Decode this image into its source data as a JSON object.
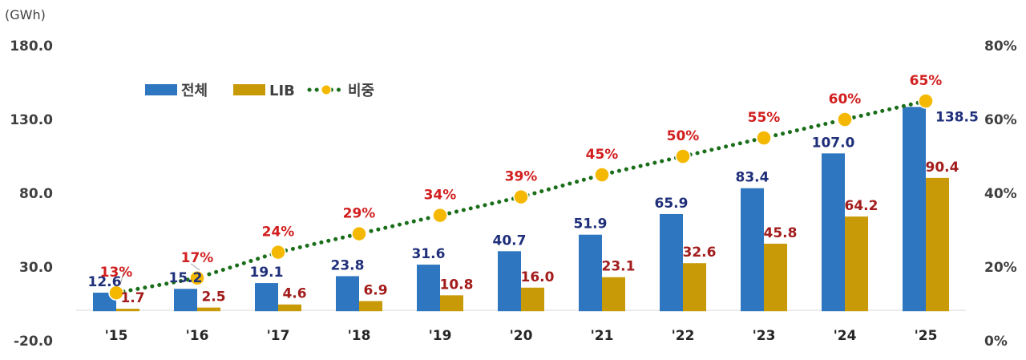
{
  "chart_data": {
    "type": "bar",
    "unit_label": "(GWh)",
    "categories": [
      "'15",
      "'16",
      "'17",
      "'18",
      "'19",
      "'20",
      "'21",
      "'22",
      "'23",
      "'24",
      "'25"
    ],
    "series": [
      {
        "name": "전체",
        "type": "bar",
        "color": "#2f76c0",
        "values": [
          12.6,
          15.2,
          19.1,
          23.8,
          31.6,
          40.7,
          51.9,
          65.9,
          83.4,
          107.0,
          138.5
        ],
        "labels": [
          "12.6",
          "15.2",
          "19.1",
          "23.8",
          "31.6",
          "40.7",
          "51.9",
          "65.9",
          "83.4",
          "107.0",
          "138.5"
        ]
      },
      {
        "name": "LIB",
        "type": "bar",
        "color": "#c99a08",
        "values": [
          1.7,
          2.5,
          4.6,
          6.9,
          10.8,
          16.0,
          23.1,
          32.6,
          45.8,
          64.2,
          90.4
        ],
        "labels": [
          "1.7",
          "2.5",
          "4.6",
          "6.9",
          "10.8",
          "16.0",
          "23.1",
          "32.6",
          "45.8",
          "64.2",
          "90.4"
        ]
      },
      {
        "name": "비중",
        "type": "line",
        "axis": "right",
        "color": "#1a6e1a",
        "marker_color": "#f5b800",
        "values": [
          13,
          17,
          24,
          29,
          34,
          39,
          45,
          50,
          55,
          60,
          65
        ],
        "labels": [
          "13%",
          "17%",
          "24%",
          "29%",
          "34%",
          "39%",
          "45%",
          "50%",
          "55%",
          "60%",
          "65%"
        ]
      }
    ],
    "y_left": {
      "min": -20,
      "max": 180,
      "ticks": [
        "180.0",
        "130.0",
        "80.0",
        "30.0",
        "-20.0"
      ],
      "tick_values": [
        180,
        130,
        80,
        30,
        -20
      ]
    },
    "y_right": {
      "min": 0,
      "max": 80,
      "ticks": [
        "80%",
        "60%",
        "40%",
        "20%",
        "0%"
      ],
      "tick_values": [
        80,
        60,
        40,
        20,
        0
      ]
    },
    "legend_position": "top-left",
    "grid": false
  }
}
